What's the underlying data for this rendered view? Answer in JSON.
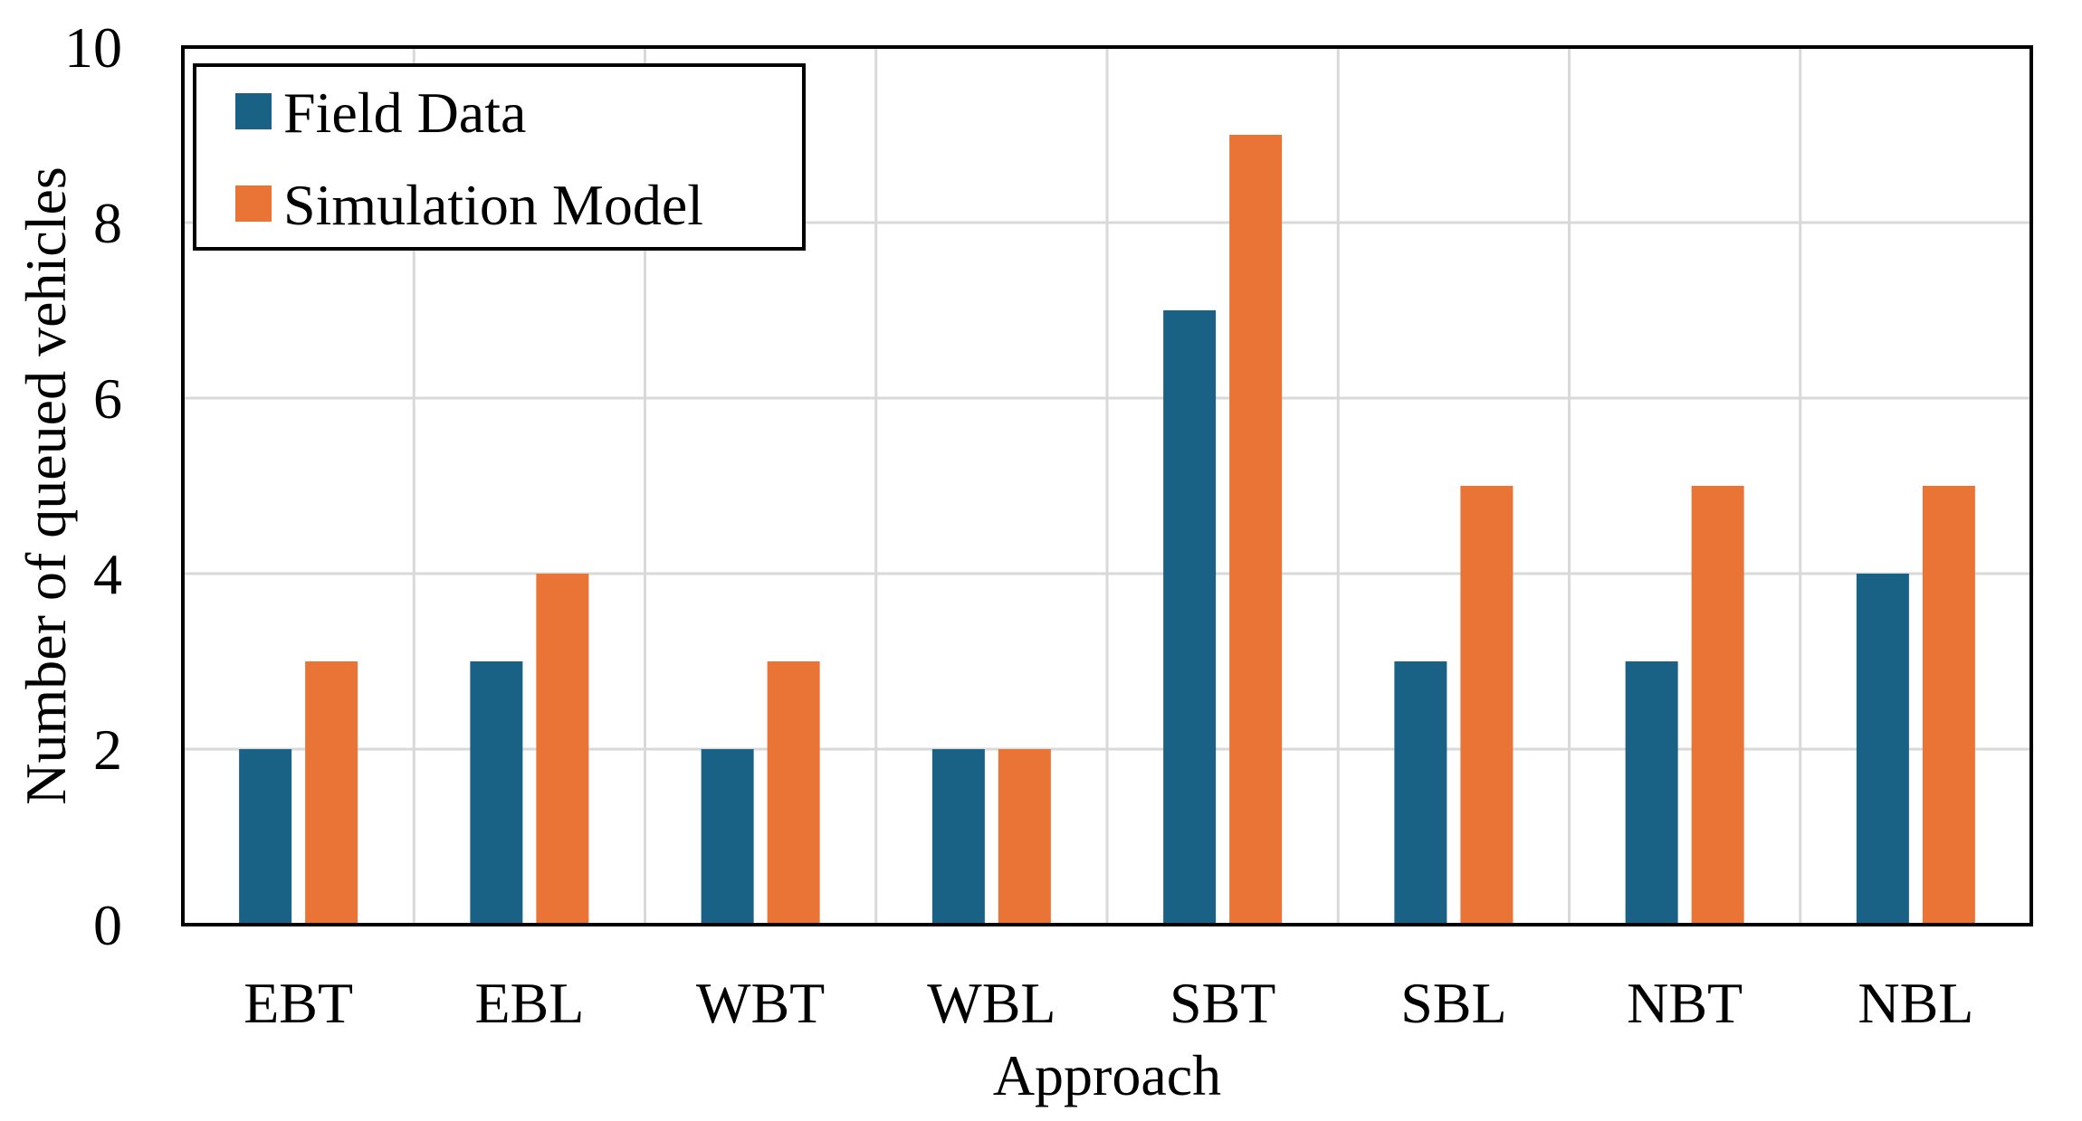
{
  "chart_data": {
    "type": "bar",
    "title": "",
    "xlabel": "Approach",
    "ylabel": "Number of queued vehicles",
    "categories": [
      "EBT",
      "EBL",
      "WBT",
      "WBL",
      "SBT",
      "SBL",
      "NBT",
      "NBL"
    ],
    "series": [
      {
        "name": "Field Data",
        "color": "#1a6186",
        "values": [
          2,
          3,
          2,
          2,
          7,
          3,
          3,
          4
        ]
      },
      {
        "name": "Simulation Model",
        "color": "#e97436",
        "values": [
          3,
          4,
          3,
          2,
          9,
          5,
          5,
          5
        ]
      }
    ],
    "ylim": [
      0,
      10
    ],
    "yticks": [
      "0",
      "2",
      "4",
      "6",
      "8",
      "10"
    ],
    "grid": true,
    "legend_position": "top-left"
  }
}
